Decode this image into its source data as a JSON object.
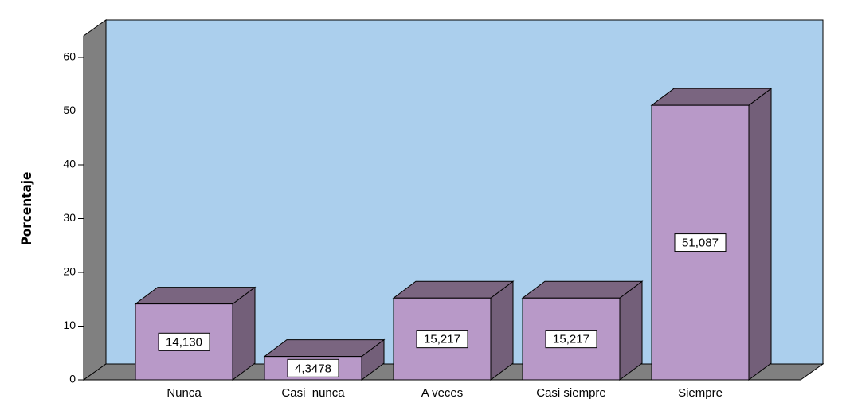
{
  "chart_data": {
    "type": "bar3d",
    "y_label": "Porcentaje",
    "categories": [
      "Nunca",
      "Casi  nunca",
      "A veces",
      "Casi siempre",
      "Siempre"
    ],
    "values": [
      14.13,
      4.3478,
      15.217,
      15.217,
      51.087
    ],
    "value_labels": [
      "14,130",
      "4,3478",
      "15,217",
      "15,217",
      "51,087"
    ],
    "color": "#b899c8",
    "ylim": [
      0,
      64
    ],
    "yticks": [
      0,
      10,
      20,
      30,
      40,
      50,
      60
    ]
  }
}
